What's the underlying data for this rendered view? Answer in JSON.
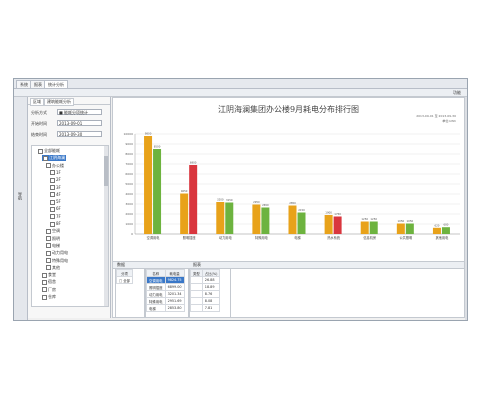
{
  "topbar": {
    "tabs": [
      "系统",
      "报表",
      "统计分析"
    ]
  },
  "toolbar": {
    "items": [
      "功能"
    ]
  },
  "leftstrip": {
    "label": "导航"
  },
  "panel": {
    "tabs": [
      "区域",
      "建筑能耗分析"
    ],
    "fields": [
      {
        "label": "分析方式",
        "value": "■ 能耗分项统计"
      },
      {
        "label": "开始时间",
        "value": "2013-09-01"
      },
      {
        "label": "结束时间",
        "value": "2013-09-30"
      }
    ],
    "tree": [
      {
        "text": "全部能耗",
        "indent": 1,
        "checkbox": true
      },
      {
        "text": "江阴海澜",
        "indent": 2,
        "checkbox": true,
        "selected": true
      },
      {
        "text": "办公楼",
        "indent": 3,
        "checkbox": true
      },
      {
        "text": "1F",
        "indent": 4,
        "checkbox": true
      },
      {
        "text": "2F",
        "indent": 4,
        "checkbox": true
      },
      {
        "text": "3F",
        "indent": 4,
        "checkbox": true
      },
      {
        "text": "4F",
        "indent": 4,
        "checkbox": true
      },
      {
        "text": "5F",
        "indent": 4,
        "checkbox": true
      },
      {
        "text": "6F",
        "indent": 4,
        "checkbox": true
      },
      {
        "text": "7F",
        "indent": 4,
        "checkbox": true
      },
      {
        "text": "8F",
        "indent": 4,
        "checkbox": true
      },
      {
        "text": "空调",
        "indent": 3,
        "checkbox": true
      },
      {
        "text": "照明",
        "indent": 3,
        "checkbox": true
      },
      {
        "text": "电梯",
        "indent": 3,
        "checkbox": true
      },
      {
        "text": "动力用电",
        "indent": 3,
        "checkbox": true
      },
      {
        "text": "特殊用电",
        "indent": 3,
        "checkbox": true
      },
      {
        "text": "其他",
        "indent": 3,
        "checkbox": true
      },
      {
        "text": "食堂",
        "indent": 2,
        "checkbox": true
      },
      {
        "text": "宿舍",
        "indent": 2,
        "checkbox": true
      },
      {
        "text": "厂房",
        "indent": 2,
        "checkbox": true
      },
      {
        "text": "仓库",
        "indent": 2,
        "checkbox": true
      }
    ]
  },
  "chart": {
    "title": "江阴海澜集团办公楼9月耗电分布排行图",
    "notes": [
      "2013-09-01 至 2013-09-30",
      "单位:kWh"
    ]
  },
  "chart_data": {
    "type": "bar",
    "title": "江阴海澜集团办公楼9月耗电分布排行图",
    "categories": [
      "空调用电",
      "照明插座",
      "动力用电",
      "特殊用电",
      "电梯",
      "热水系统",
      "信息机房",
      "公共照明",
      "其他用电"
    ],
    "series": [
      {
        "name": "",
        "color": "#e8a21a",
        "values": [
          9800,
          4050,
          3200,
          2950,
          2850,
          1900,
          1250,
          1050,
          620
        ]
      },
      {
        "name": "",
        "color": "#6db33f",
        "values": [
          8500,
          6900,
          3150,
          2650,
          2150,
          1750,
          1250,
          1050,
          680
        ]
      }
    ],
    "highlight": {
      "category_index": 1,
      "series_index": 1,
      "color": "#d9363e"
    },
    "highlight2": {
      "category_index": 5,
      "series_index": 1,
      "color": "#d9363e"
    },
    "ylim": [
      0,
      10000
    ],
    "yticks": [
      0,
      1000,
      2000,
      3000,
      4000,
      5000,
      6000,
      7000,
      8000,
      9000,
      10000
    ],
    "grid": true,
    "data_labels": [
      [
        "9800",
        "8500"
      ],
      [
        "4050",
        "6900"
      ],
      [
        "3200",
        "3150"
      ],
      [
        "2950",
        "2650"
      ],
      [
        "2850",
        "2150"
      ],
      [
        "1900",
        "1750"
      ],
      [
        "1250",
        "1250"
      ],
      [
        "1050",
        "1050"
      ],
      [
        "620",
        "680"
      ]
    ]
  },
  "bottom": {
    "tabs": [
      "数据",
      "报表"
    ],
    "left_table": {
      "headers": [
        "分项"
      ],
      "rows": [
        [
          "□ 全部"
        ]
      ]
    },
    "mid_table": {
      "headers": [
        "名称",
        "耗电量"
      ],
      "rows": [
        [
          "空调用电",
          "9824.75"
        ],
        [
          "照明插座",
          "6899.00"
        ],
        [
          "动力用电",
          "3201.34"
        ],
        [
          "特殊用电",
          "2951.69"
        ],
        [
          "电梯",
          "2853.80"
        ]
      ]
    },
    "right_table": {
      "headers": [
        "类型",
        "占比(%)"
      ],
      "rows": [
        [
          "",
          "26.88"
        ],
        [
          "",
          "18.89"
        ],
        [
          "",
          "8.76"
        ],
        [
          "",
          "8.08"
        ],
        [
          "",
          "7.81"
        ]
      ]
    }
  }
}
